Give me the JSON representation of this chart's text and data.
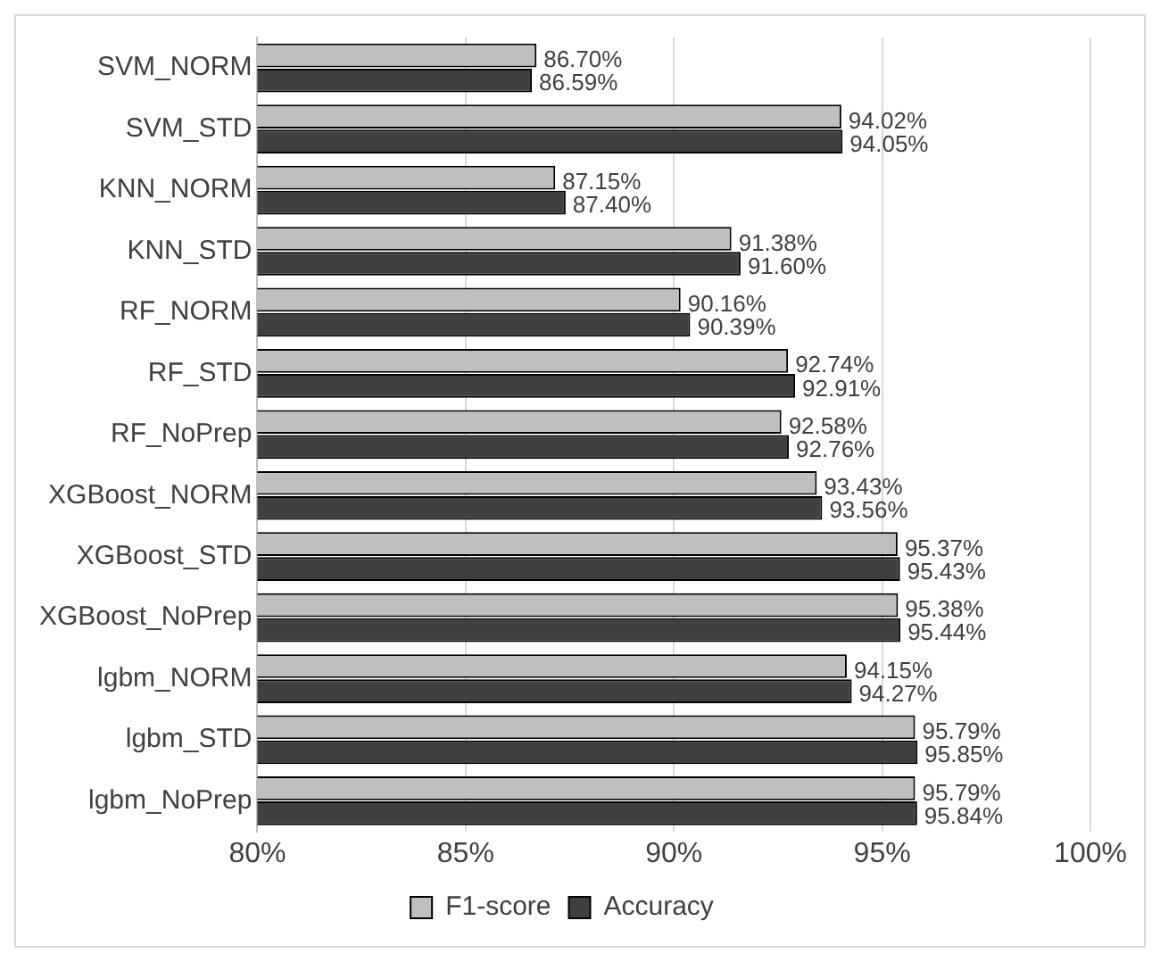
{
  "chart_data": {
    "type": "bar",
    "orientation": "horizontal",
    "categories": [
      "SVM_NORM",
      "SVM_STD",
      "KNN_NORM",
      "KNN_STD",
      "RF_NORM",
      "RF_STD",
      "RF_NoPrep",
      "XGBoost_NORM",
      "XGBoost_STD",
      "XGBoost_NoPrep",
      "lgbm_NORM",
      "lgbm_STD",
      "lgbm_NoPrep"
    ],
    "series": [
      {
        "name": "F1-score",
        "color": "#bfbfbf",
        "values": [
          86.7,
          94.02,
          87.15,
          91.38,
          90.16,
          92.74,
          92.58,
          93.43,
          95.37,
          95.38,
          94.15,
          95.79,
          95.79
        ],
        "value_labels": [
          "86.70%",
          "94.02%",
          "87.15%",
          "91.38%",
          "90.16%",
          "92.74%",
          "92.58%",
          "93.43%",
          "95.37%",
          "95.38%",
          "94.15%",
          "95.79%",
          "95.79%"
        ]
      },
      {
        "name": "Accuracy",
        "color": "#404040",
        "values": [
          86.59,
          94.05,
          87.4,
          91.6,
          90.39,
          92.91,
          92.76,
          93.56,
          95.43,
          95.44,
          94.27,
          95.85,
          95.84
        ],
        "value_labels": [
          "86.59%",
          "94.05%",
          "87.40%",
          "91.60%",
          "90.39%",
          "92.91%",
          "92.76%",
          "93.56%",
          "95.43%",
          "95.44%",
          "94.27%",
          "95.85%",
          "95.84%"
        ]
      }
    ],
    "xlim": [
      80,
      100
    ],
    "xticks": [
      {
        "value": 80,
        "label": "80%"
      },
      {
        "value": 85,
        "label": "85%"
      },
      {
        "value": 90,
        "label": "90%"
      },
      {
        "value": 95,
        "label": "95%"
      },
      {
        "value": 100,
        "label": "100%"
      }
    ],
    "grid": "x",
    "legend": "bottom"
  }
}
